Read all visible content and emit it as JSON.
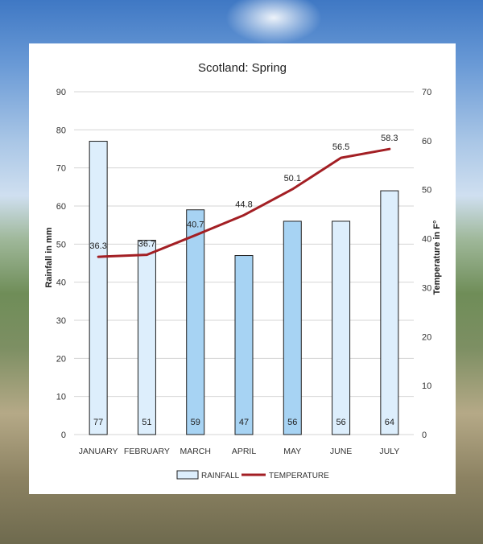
{
  "chart_data": {
    "type": "bar",
    "title": "Scotland: Spring",
    "categories": [
      "JANUARY",
      "FEBRUARY",
      "MARCH",
      "APRIL",
      "MAY",
      "JUNE",
      "JULY"
    ],
    "series": [
      {
        "name": "RAINFALL",
        "type": "bar",
        "axis": "left",
        "values": [
          77,
          51,
          59,
          47,
          56,
          56,
          64
        ]
      },
      {
        "name": "TEMPERATURE",
        "type": "line",
        "axis": "right",
        "values": [
          36.3,
          36.7,
          40.7,
          44.8,
          50.1,
          56.5,
          58.3
        ]
      }
    ],
    "ylabel": "Rainfall in mm",
    "y2label": "Temperature in F°",
    "ylim": [
      0,
      90
    ],
    "y2lim": [
      0,
      70
    ],
    "yticks": [
      "0",
      "10",
      "20",
      "30",
      "40",
      "50",
      "60",
      "70",
      "80",
      "90"
    ],
    "y2ticks": [
      "0",
      "10",
      "20",
      "30",
      "40",
      "50",
      "60",
      "70"
    ],
    "grid": true,
    "legend": "bottom",
    "colors": {
      "bar_fills": [
        "#ddeefc",
        "#ddeefc",
        "#a7d3f3",
        "#a7d3f3",
        "#a7d3f3",
        "#ddeefc",
        "#ddeefc"
      ],
      "bar_stroke": "#1f1f1f",
      "line": "#a31f24",
      "grid": "#d4d4d4"
    }
  }
}
